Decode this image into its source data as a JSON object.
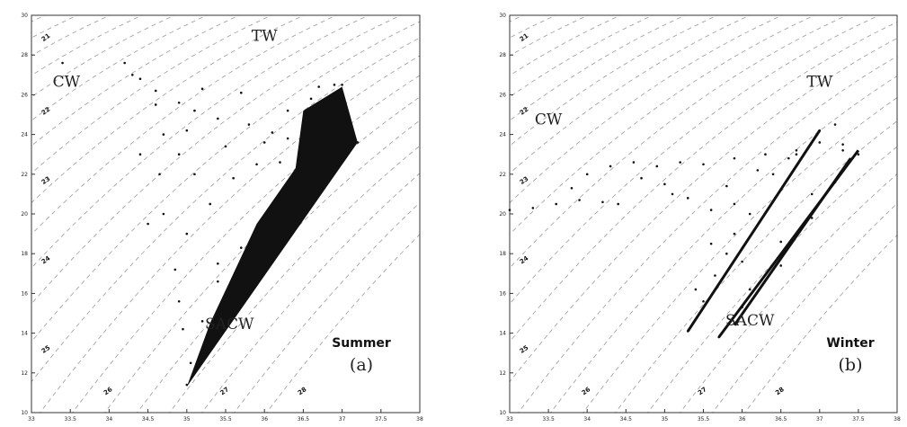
{
  "chart_data": [
    {
      "type": "scatter",
      "title": "",
      "xlabel": "",
      "ylabel": "",
      "xlim": [
        33,
        38
      ],
      "ylim": [
        10,
        30
      ],
      "x_ticks": [
        "33",
        "33.5",
        "34",
        "34.5",
        "35",
        "35.5",
        "36",
        "36.5",
        "37",
        "37.5",
        "38"
      ],
      "y_ticks": [
        "10",
        "12",
        "14",
        "16",
        "18",
        "20",
        "22",
        "24",
        "26",
        "28",
        "30"
      ],
      "isopycnals": [
        {
          "label": "21",
          "x": 33.2,
          "y": 28.8
        },
        {
          "label": "22",
          "x": 33.2,
          "y": 25.1
        },
        {
          "label": "23",
          "x": 33.2,
          "y": 21.6
        },
        {
          "label": "24",
          "x": 33.2,
          "y": 17.6
        },
        {
          "label": "25",
          "x": 33.2,
          "y": 13.1
        },
        {
          "label": "26",
          "x": 34.0,
          "y": 11.0
        },
        {
          "label": "27",
          "x": 35.5,
          "y": 11.0
        },
        {
          "label": "28",
          "x": 36.5,
          "y": 11.0
        }
      ],
      "water_masses": [
        {
          "label": "TW",
          "x": 36.0,
          "y": 28.7
        },
        {
          "label": "CW",
          "x": 33.45,
          "y": 26.4
        },
        {
          "label": "SACW",
          "x": 35.55,
          "y": 14.2
        }
      ],
      "season": "Summer",
      "panel": "(a)",
      "series": [
        {
          "values": [
            [
              33.4,
              27.6
            ],
            [
              34.2,
              27.6
            ],
            [
              34.3,
              27.0
            ],
            [
              34.4,
              26.8
            ],
            [
              34.6,
              26.2
            ],
            [
              34.9,
              25.6
            ],
            [
              35.1,
              25.2
            ],
            [
              35.4,
              24.8
            ],
            [
              35.8,
              24.5
            ],
            [
              36.1,
              24.1
            ],
            [
              36.3,
              23.8
            ],
            [
              36.5,
              24.6
            ],
            [
              36.6,
              25.8
            ],
            [
              36.7,
              26.4
            ],
            [
              36.9,
              26.5
            ],
            [
              37.0,
              26.5
            ],
            [
              37.0,
              25.2
            ],
            [
              37.2,
              23.6
            ],
            [
              37.0,
              23.2
            ],
            [
              36.8,
              22.5
            ],
            [
              36.4,
              21.2
            ],
            [
              36.0,
              19.6
            ],
            [
              35.7,
              18.3
            ],
            [
              35.4,
              16.6
            ],
            [
              35.2,
              14.6
            ],
            [
              35.05,
              12.5
            ],
            [
              35.0,
              11.4
            ],
            [
              34.95,
              14.2
            ],
            [
              34.9,
              15.6
            ],
            [
              34.85,
              17.2
            ],
            [
              34.7,
              20.0
            ],
            [
              34.65,
              22.0
            ],
            [
              34.7,
              24.0
            ],
            [
              34.9,
              23.0
            ],
            [
              35.1,
              22.0
            ],
            [
              35.0,
              19.0
            ],
            [
              35.3,
              20.5
            ],
            [
              35.6,
              21.8
            ],
            [
              35.9,
              22.5
            ],
            [
              36.2,
              22.6
            ],
            [
              35.5,
              23.4
            ],
            [
              35.0,
              24.2
            ],
            [
              34.6,
              25.5
            ],
            [
              35.2,
              26.3
            ],
            [
              35.7,
              26.1
            ],
            [
              36.0,
              23.6
            ],
            [
              36.5,
              22.0
            ],
            [
              36.8,
              23.8
            ],
            [
              36.3,
              25.2
            ],
            [
              34.4,
              23.0
            ],
            [
              34.5,
              19.5
            ],
            [
              35.4,
              17.5
            ],
            [
              35.6,
              15.0
            ]
          ]
        }
      ]
    },
    {
      "type": "scatter",
      "title": "",
      "xlabel": "",
      "ylabel": "",
      "xlim": [
        33,
        38
      ],
      "ylim": [
        10,
        30
      ],
      "x_ticks": [
        "33",
        "33.5",
        "34",
        "34.5",
        "35",
        "35.5",
        "36",
        "36.5",
        "37",
        "37.5",
        "38"
      ],
      "y_ticks": [
        "10",
        "12",
        "14",
        "16",
        "18",
        "20",
        "22",
        "24",
        "26",
        "28",
        "30"
      ],
      "isopycnals": [
        {
          "label": "21",
          "x": 33.2,
          "y": 28.8
        },
        {
          "label": "22",
          "x": 33.2,
          "y": 25.1
        },
        {
          "label": "23",
          "x": 33.2,
          "y": 21.6
        },
        {
          "label": "24",
          "x": 33.2,
          "y": 17.6
        },
        {
          "label": "25",
          "x": 33.2,
          "y": 13.1
        },
        {
          "label": "26",
          "x": 34.0,
          "y": 11.0
        },
        {
          "label": "27",
          "x": 35.5,
          "y": 11.0
        },
        {
          "label": "28",
          "x": 36.5,
          "y": 11.0
        }
      ],
      "water_masses": [
        {
          "label": "TW",
          "x": 37.0,
          "y": 26.4
        },
        {
          "label": "CW",
          "x": 33.5,
          "y": 24.5
        },
        {
          "label": "SACW",
          "x": 36.1,
          "y": 14.4
        }
      ],
      "season": "Winter",
      "panel": "(b)",
      "series": [
        {
          "values": [
            [
              33.0,
              20.2
            ],
            [
              33.3,
              20.3
            ],
            [
              33.6,
              20.5
            ],
            [
              33.9,
              20.7
            ],
            [
              34.2,
              20.6
            ],
            [
              34.4,
              20.5
            ],
            [
              33.8,
              21.3
            ],
            [
              34.0,
              22.0
            ],
            [
              34.3,
              22.4
            ],
            [
              34.6,
              22.6
            ],
            [
              34.9,
              22.4
            ],
            [
              35.2,
              22.6
            ],
            [
              35.5,
              22.5
            ],
            [
              35.9,
              22.8
            ],
            [
              36.3,
              23.0
            ],
            [
              36.7,
              23.2
            ],
            [
              37.0,
              23.6
            ],
            [
              37.2,
              24.5
            ],
            [
              37.0,
              24.2
            ],
            [
              36.7,
              23.0
            ],
            [
              36.4,
              22.0
            ],
            [
              36.1,
              20.0
            ],
            [
              35.8,
              18.0
            ],
            [
              35.5,
              15.6
            ],
            [
              35.3,
              14.1
            ],
            [
              35.4,
              16.2
            ],
            [
              35.6,
              18.5
            ],
            [
              35.9,
              20.5
            ],
            [
              36.2,
              22.2
            ],
            [
              36.6,
              22.8
            ],
            [
              37.3,
              23.5
            ],
            [
              37.5,
              23.0
            ],
            [
              37.2,
              21.6
            ],
            [
              36.9,
              19.8
            ],
            [
              36.5,
              17.4
            ],
            [
              36.0,
              15.3
            ],
            [
              35.7,
              13.8
            ],
            [
              36.1,
              16.2
            ],
            [
              36.5,
              18.6
            ],
            [
              36.9,
              21.0
            ],
            [
              37.3,
              23.2
            ],
            [
              35.0,
              21.5
            ],
            [
              35.3,
              20.8
            ],
            [
              35.6,
              20.2
            ],
            [
              35.9,
              19.0
            ],
            [
              34.7,
              21.8
            ],
            [
              35.1,
              21.0
            ],
            [
              35.8,
              21.4
            ],
            [
              36.0,
              17.6
            ],
            [
              35.65,
              16.9
            ]
          ]
        }
      ]
    }
  ]
}
